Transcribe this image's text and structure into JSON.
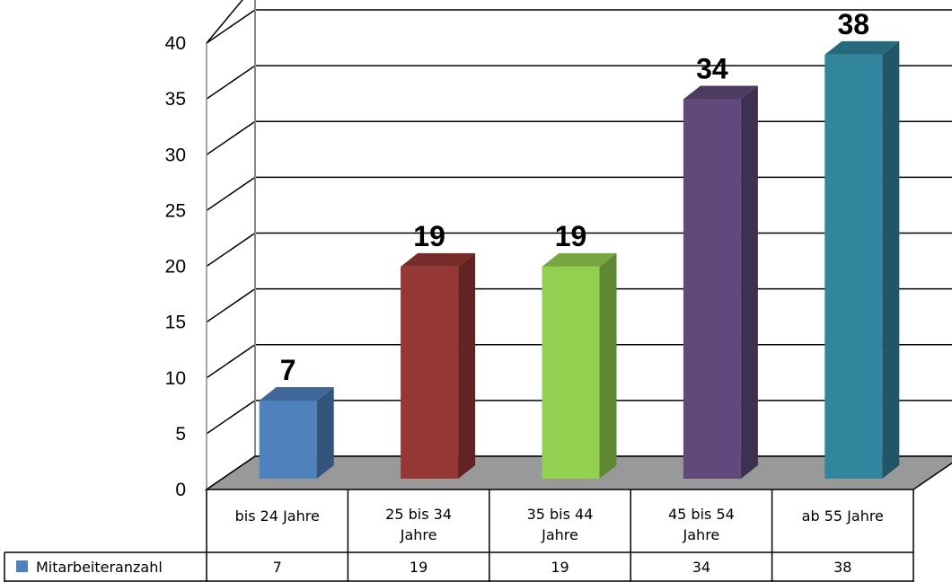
{
  "chart_data": {
    "type": "bar",
    "categories": [
      "bis 24 Jahre",
      "25 bis 34 Jahre",
      "35 bis 44 Jahre",
      "45 bis 54 Jahre",
      "ab 55 Jahre"
    ],
    "category_lines": [
      [
        "bis 24 Jahre"
      ],
      [
        "25 bis 34",
        "Jahre"
      ],
      [
        "35 bis 44",
        "Jahre"
      ],
      [
        "45 bis 54",
        "Jahre"
      ],
      [
        "ab 55 Jahre"
      ]
    ],
    "series": [
      {
        "name": "Mitarbeiteranzahl",
        "values": [
          7,
          19,
          19,
          34,
          38
        ],
        "legend_color": "#4F81BD"
      }
    ],
    "bar_colors": [
      "#4F81BD",
      "#953735",
      "#92D050",
      "#604A7B",
      "#31859C"
    ],
    "data_labels": [
      "7",
      "19",
      "19",
      "34",
      "38"
    ],
    "yticks": [
      "0",
      "5",
      "10",
      "15",
      "20",
      "25",
      "30",
      "35",
      "40"
    ],
    "ylim": [
      0,
      40
    ],
    "grid": true,
    "three_d": true,
    "data_table": true,
    "floor_color": "#999999"
  }
}
